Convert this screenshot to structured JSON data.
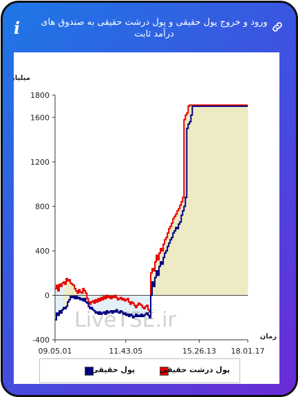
{
  "header": {
    "title": "ورود و خروج پول حقیقی و پول درشت حقیقی به صندوق های درآمد ثابت",
    "info_icon": "info-icon",
    "link_icon": "link-icon"
  },
  "watermark": "LiveTSE.ir",
  "colors": {
    "real_money": "#00007f",
    "big_real_money": "#e60000",
    "fill_positive": "#eeebc4",
    "fill_negative": "#e4f0f7"
  },
  "chart_data": {
    "type": "line",
    "ylabel": "میلیارد تومان",
    "xlabel": "زمان",
    "ylim": [
      -400,
      1800
    ],
    "yticks": [
      -400,
      0,
      400,
      800,
      1200,
      1600,
      1800
    ],
    "x_ticks": [
      "09.05.01",
      "11.43.05",
      "15.26.13",
      "18.01.17"
    ],
    "grid": false,
    "legend_position": "bottom",
    "series": [
      {
        "name": "پول حقیقی",
        "color": "#00007f",
        "values": [
          -220,
          -160,
          -180,
          -140,
          -160,
          -130,
          -110,
          -120,
          -100,
          -60,
          -40,
          -10,
          -20,
          -10,
          -30,
          -10,
          -30,
          -20,
          -40,
          -30,
          -50,
          -30,
          -60,
          -70,
          -100,
          -120,
          -110,
          -130,
          -140,
          -160,
          -150,
          -170,
          -150,
          -170,
          -160,
          -150,
          -170,
          -140,
          -160,
          -150,
          -140,
          -160,
          -140,
          -150,
          -130,
          -150,
          -160,
          -140,
          -150,
          -170,
          -160,
          -180,
          -170,
          -190,
          -170,
          -180,
          -200,
          -190,
          -170,
          -190,
          -180,
          -190,
          -170,
          -190,
          -180,
          -170,
          -160,
          -180,
          -200,
          0,
          120,
          80,
          160,
          220,
          180,
          260,
          300,
          280,
          340,
          380,
          400,
          440,
          470,
          500,
          520,
          560,
          580,
          610,
          600,
          640,
          660,
          720,
          760,
          800,
          880,
          1500,
          1540,
          1560,
          1620,
          1700,
          1700,
          1700,
          1700,
          1700,
          1700,
          1700,
          1700,
          1700,
          1700,
          1700,
          1700,
          1700,
          1700,
          1700,
          1700,
          1700,
          1700,
          1700,
          1700,
          1700,
          1700,
          1700,
          1700,
          1700,
          1700,
          1700,
          1700,
          1700,
          1700,
          1700,
          1700,
          1700,
          1700,
          1700,
          1700,
          1700,
          1700,
          1700,
          1700,
          1700
        ]
      },
      {
        "name": "پول درشت حقیقی",
        "color": "#e60000",
        "values": [
          60,
          90,
          40,
          100,
          80,
          110,
          120,
          100,
          150,
          130,
          140,
          110,
          100,
          90,
          60,
          40,
          20,
          50,
          30,
          20,
          60,
          40,
          20,
          -30,
          -60,
          -80,
          -60,
          -50,
          -70,
          -40,
          -60,
          -30,
          -50,
          -20,
          -40,
          -10,
          -30,
          0,
          -20,
          -10,
          -30,
          -10,
          -20,
          0,
          -20,
          -40,
          -30,
          -20,
          -40,
          -30,
          -50,
          -40,
          -30,
          -60,
          -80,
          -60,
          -70,
          -90,
          -110,
          -90,
          -70,
          -80,
          -90,
          -110,
          -120,
          -100,
          -90,
          -130,
          -150,
          200,
          240,
          220,
          300,
          360,
          320,
          380,
          420,
          400,
          460,
          500,
          520,
          560,
          600,
          620,
          650,
          690,
          710,
          730,
          760,
          780,
          810,
          840,
          880,
          1580,
          1620,
          1640,
          1700,
          1710,
          1710,
          1710,
          1710,
          1710,
          1710,
          1710,
          1710,
          1710,
          1710,
          1710,
          1710,
          1710,
          1710,
          1710,
          1710,
          1710,
          1710,
          1710,
          1710,
          1710,
          1710,
          1710,
          1710,
          1710,
          1710,
          1710,
          1710,
          1710,
          1710,
          1710,
          1710,
          1710,
          1710,
          1710,
          1710,
          1710,
          1710,
          1710,
          1710,
          1710,
          1710,
          1710
        ]
      }
    ]
  }
}
